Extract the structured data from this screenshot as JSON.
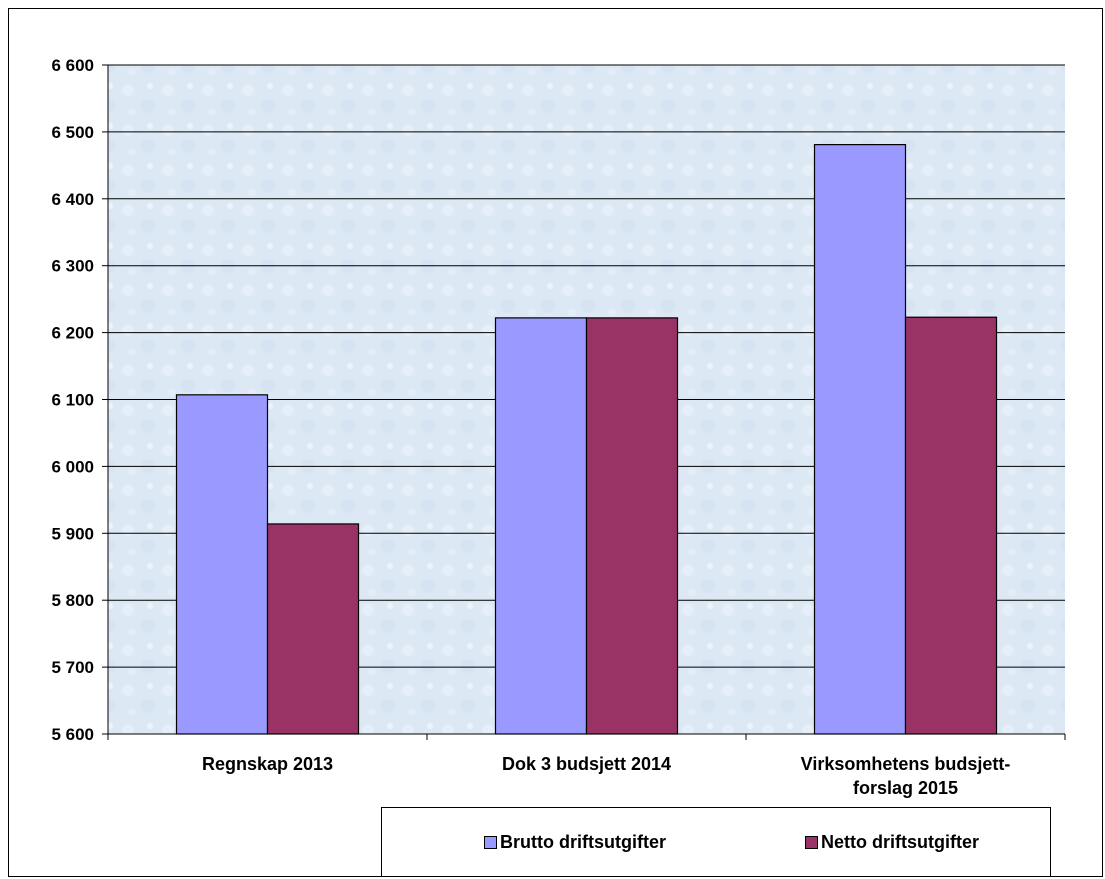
{
  "chart_data": {
    "type": "bar",
    "title": "",
    "xlabel": "",
    "ylabel": "",
    "categories": [
      [
        "Regnskap 2013"
      ],
      [
        "Dok 3 budsjett 2014"
      ],
      [
        "Virksomhetens budsjett-",
        "forslag 2015"
      ]
    ],
    "series": [
      {
        "name": "Brutto driftsutgifter",
        "color": "#9999ff",
        "values": [
          6107,
          6222,
          6481
        ]
      },
      {
        "name": "Netto driftsutgifter",
        "color": "#993366",
        "values": [
          5914,
          6222,
          6223
        ]
      }
    ],
    "ylim": [
      5600,
      6600
    ],
    "yticks": [
      5600,
      5700,
      5800,
      5900,
      6000,
      6100,
      6200,
      6300,
      6400,
      6500,
      6600
    ],
    "ytick_labels": [
      "5 600",
      "5 700",
      "5 800",
      "5 900",
      "6 000",
      "6 100",
      "6 200",
      "6 300",
      "6 400",
      "6 500",
      "6 600"
    ],
    "grid": true,
    "legend_position": "bottom-right",
    "plot_background": "#dde8f5"
  }
}
